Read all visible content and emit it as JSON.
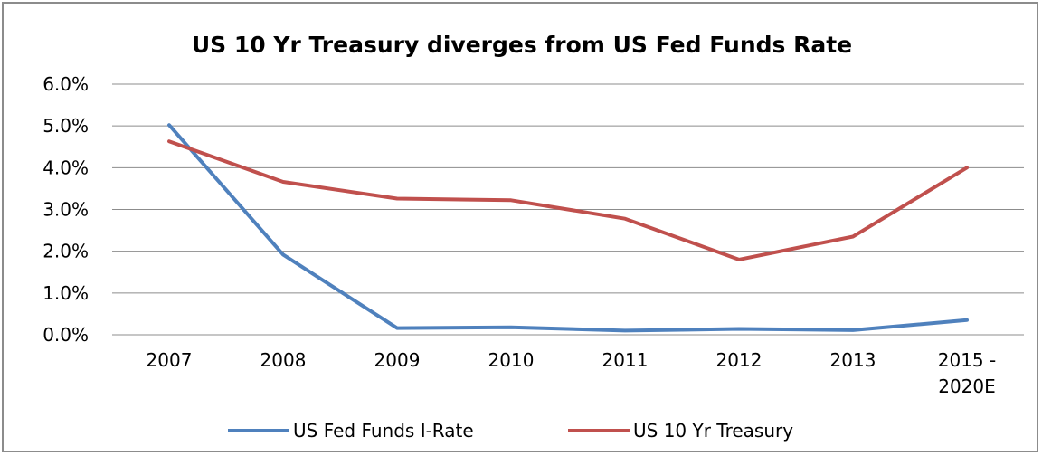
{
  "chart_data": {
    "type": "line",
    "title": "US 10 Yr Treasury diverges from US Fed Funds Rate",
    "categories": [
      "2007",
      "2008",
      "2009",
      "2010",
      "2011",
      "2012",
      "2013",
      "2015 - 2020E"
    ],
    "category_lines": [
      [
        "2007"
      ],
      [
        "2008"
      ],
      [
        "2009"
      ],
      [
        "2010"
      ],
      [
        "2011"
      ],
      [
        "2012"
      ],
      [
        "2013"
      ],
      [
        "2015 -",
        "2020E"
      ]
    ],
    "y_ticks": [
      "0.0%",
      "1.0%",
      "2.0%",
      "3.0%",
      "4.0%",
      "5.0%",
      "6.0%"
    ],
    "ylim": [
      0,
      6
    ],
    "y_unit": "%",
    "grid": true,
    "legend_position": "bottom",
    "series": [
      {
        "name": "US Fed Funds I-Rate",
        "color": "#4f81bd",
        "values": [
          5.02,
          1.92,
          0.16,
          0.18,
          0.1,
          0.14,
          0.11,
          0.35
        ]
      },
      {
        "name": "US 10 Yr Treasury",
        "color": "#c0504d",
        "values": [
          4.63,
          3.66,
          3.26,
          3.22,
          2.78,
          1.8,
          2.35,
          4.0
        ]
      }
    ]
  }
}
